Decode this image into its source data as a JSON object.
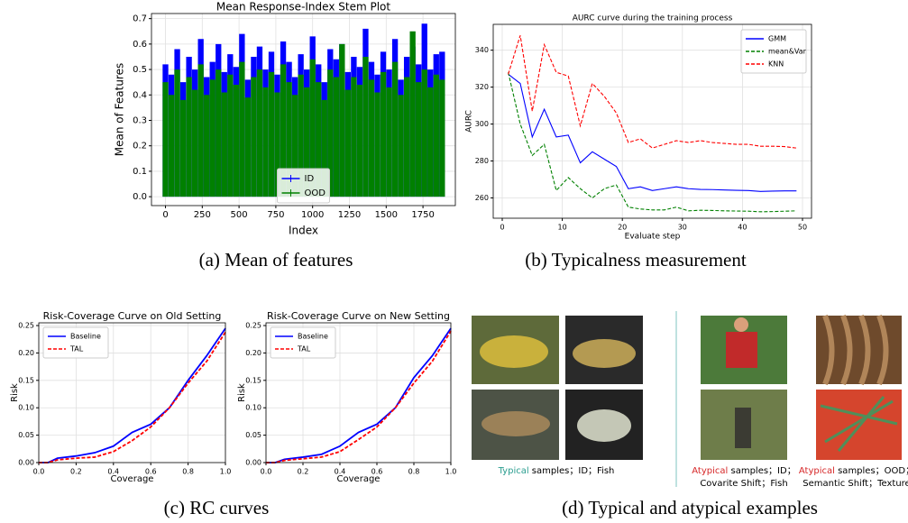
{
  "chart_data": [
    {
      "type": "stem",
      "title": "Mean Response-Index Stem Plot",
      "x_label": "Index",
      "y_label": "Mean of Features",
      "x": [
        0,
        40,
        80,
        120,
        160,
        200,
        240,
        280,
        320,
        360,
        400,
        440,
        480,
        520,
        560,
        600,
        640,
        680,
        720,
        760,
        800,
        840,
        880,
        920,
        960,
        1000,
        1040,
        1080,
        1120,
        1160,
        1200,
        1240,
        1280,
        1320,
        1360,
        1400,
        1440,
        1480,
        1520,
        1560,
        1600,
        1640,
        1680,
        1720,
        1760,
        1800,
        1840,
        1880
      ],
      "series": [
        {
          "name": "ID",
          "color": "#0000ff",
          "values": [
            0.52,
            0.48,
            0.58,
            0.45,
            0.55,
            0.5,
            0.62,
            0.47,
            0.53,
            0.6,
            0.49,
            0.56,
            0.51,
            0.64,
            0.46,
            0.55,
            0.59,
            0.5,
            0.57,
            0.48,
            0.61,
            0.53,
            0.47,
            0.56,
            0.5,
            0.63,
            0.52,
            0.45,
            0.58,
            0.54,
            0.6,
            0.49,
            0.55,
            0.51,
            0.66,
            0.53,
            0.48,
            0.57,
            0.5,
            0.62,
            0.46,
            0.55,
            0.59,
            0.52,
            0.68,
            0.5,
            0.56,
            0.57
          ]
        },
        {
          "name": "OOD",
          "color": "#008000",
          "values": [
            0.45,
            0.4,
            0.5,
            0.38,
            0.47,
            0.42,
            0.52,
            0.4,
            0.46,
            0.5,
            0.41,
            0.48,
            0.44,
            0.53,
            0.39,
            0.47,
            0.5,
            0.43,
            0.49,
            0.41,
            0.52,
            0.45,
            0.4,
            0.48,
            0.43,
            0.54,
            0.45,
            0.38,
            0.5,
            0.47,
            0.6,
            0.42,
            0.47,
            0.44,
            0.55,
            0.46,
            0.41,
            0.49,
            0.43,
            0.53,
            0.4,
            0.47,
            0.65,
            0.45,
            0.5,
            0.43,
            0.48,
            0.46
          ]
        }
      ],
      "xlim": [
        -95,
        1970
      ],
      "xticks": [
        0,
        250,
        500,
        750,
        1000,
        1250,
        1500,
        1750
      ],
      "ylim": [
        -0.035,
        0.72
      ],
      "yticks": [
        {
          "value": 0,
          "label": "0.0"
        },
        0.1,
        0.2,
        0.3,
        0.4,
        0.5,
        0.6,
        0.7
      ],
      "grid": true,
      "legend": "lower center"
    },
    {
      "type": "line",
      "title": "AURC curve during the training process",
      "x_label": "Evaluate step",
      "y_label": "AURC",
      "x": [
        1,
        3,
        5,
        7,
        9,
        11,
        13,
        15,
        17,
        19,
        21,
        23,
        25,
        27,
        29,
        31,
        33,
        35,
        37,
        39,
        41,
        43,
        45,
        47,
        49
      ],
      "series": [
        {
          "name": "GMM",
          "color": "#0000ff",
          "style": "solid",
          "values": [
            327,
            322,
            293,
            308,
            293,
            294,
            279,
            285,
            281,
            277,
            265,
            266,
            264,
            265,
            266,
            265,
            264.6,
            264.5,
            264.3,
            264.1,
            264,
            263.5,
            263.7,
            263.8,
            263.8
          ]
        },
        {
          "name": "mean&Var",
          "color": "#008000",
          "style": "dashed",
          "values": [
            328,
            300,
            283,
            289,
            264,
            271,
            265,
            260,
            265,
            267,
            255,
            254,
            253.5,
            253.5,
            255,
            253,
            253.3,
            253.2,
            253,
            252.9,
            252.8,
            252.5,
            252.6,
            252.8,
            253
          ]
        },
        {
          "name": "KNN",
          "color": "#ff0000",
          "style": "dashed",
          "values": [
            327,
            348,
            307,
            343,
            328,
            326,
            299,
            322,
            315,
            306,
            290,
            292,
            287,
            289,
            291,
            290,
            291,
            290,
            289.5,
            289,
            289,
            288,
            288,
            287.8,
            287
          ]
        }
      ],
      "xlim": [
        -1.5,
        51.5
      ],
      "xticks": [
        0,
        10,
        20,
        30,
        40,
        50
      ],
      "ylim": [
        249,
        354
      ],
      "yticks": [
        260,
        280,
        300,
        320,
        340
      ],
      "grid": true,
      "legend": "upper right"
    },
    {
      "type": "line",
      "title": "Risk-Coverage Curve on Old Setting",
      "x_label": "Coverage",
      "y_label": "Risk",
      "x": [
        0,
        0.05,
        0.1,
        0.2,
        0.3,
        0.4,
        0.5,
        0.6,
        0.7,
        0.8,
        0.9,
        1
      ],
      "series": [
        {
          "name": "Baseline",
          "color": "#0000ff",
          "style": "solid",
          "values": [
            0,
            0,
            0.008,
            0.012,
            0.018,
            0.03,
            0.055,
            0.07,
            0.1,
            0.15,
            0.195,
            0.245
          ]
        },
        {
          "name": "TAL",
          "color": "#ff0000",
          "style": "dashed",
          "values": [
            0,
            0,
            0.005,
            0.008,
            0.01,
            0.02,
            0.04,
            0.065,
            0.1,
            0.145,
            0.185,
            0.238
          ]
        }
      ],
      "xlim": [
        0,
        1
      ],
      "xticks": [
        {
          "value": 0,
          "label": "0.0"
        },
        0.2,
        0.4,
        0.6,
        0.8,
        {
          "value": 1,
          "label": "1.0"
        }
      ],
      "ylim": [
        0,
        0.255
      ],
      "yticks": [
        {
          "value": 0,
          "label": "0.00"
        },
        0.05,
        {
          "value": 0.1,
          "label": "0.10"
        },
        0.15,
        {
          "value": 0.2,
          "label": "0.20"
        },
        0.25
      ],
      "grid": true,
      "legend": "upper left"
    },
    {
      "type": "line",
      "title": "Risk-Coverage Curve on New Setting",
      "x_label": "Coverage",
      "y_label": "Risk",
      "x": [
        0,
        0.05,
        0.1,
        0.2,
        0.3,
        0.4,
        0.5,
        0.6,
        0.7,
        0.8,
        0.9,
        1
      ],
      "series": [
        {
          "name": "Baseline",
          "color": "#0000ff",
          "style": "solid",
          "values": [
            0,
            0,
            0.006,
            0.01,
            0.015,
            0.03,
            0.055,
            0.07,
            0.1,
            0.155,
            0.195,
            0.245
          ]
        },
        {
          "name": "TAL",
          "color": "#ff0000",
          "style": "dashed",
          "values": [
            0,
            0,
            0.004,
            0.007,
            0.01,
            0.02,
            0.042,
            0.065,
            0.1,
            0.145,
            0.185,
            0.24
          ]
        }
      ],
      "xlim": [
        0,
        1
      ],
      "xticks": [
        {
          "value": 0,
          "label": "0.0"
        },
        0.2,
        0.4,
        0.6,
        0.8,
        {
          "value": 1,
          "label": "1.0"
        }
      ],
      "ylim": [
        0,
        0.255
      ],
      "yticks": [
        {
          "value": 0,
          "label": "0.00"
        },
        0.05,
        {
          "value": 0.1,
          "label": "0.10"
        },
        0.15,
        {
          "value": 0.2,
          "label": "0.20"
        },
        0.25
      ],
      "grid": true,
      "legend": "upper left"
    }
  ],
  "captions": [
    "(a) Mean of features",
    "(b) Typicalness measurement",
    "(c) RC curves",
    "(d) Typical and atypical examples"
  ],
  "examples": {
    "typical": {
      "tag": "Typical",
      "text": " samples；ID；Fish"
    },
    "atypical_id": {
      "tag": "Atypical",
      "text": " samples；ID；",
      "text2": "Covarite Shift；Fish"
    },
    "atypical_ood": {
      "tag": "Atypical",
      "text": " samples；OOD；",
      "text2": "Semantic Shift；Texture"
    }
  }
}
